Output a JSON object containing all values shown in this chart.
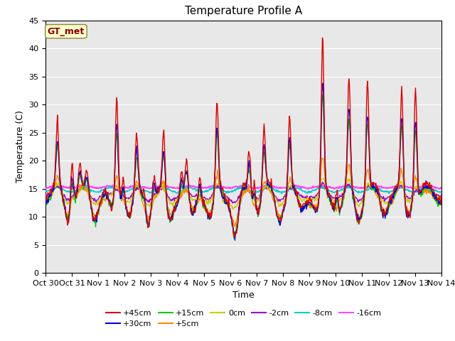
{
  "title": "Temperature Profile A",
  "xlabel": "Time",
  "ylabel": "Temperature (C)",
  "ylim": [
    0,
    45
  ],
  "yticks": [
    0,
    5,
    10,
    15,
    20,
    25,
    30,
    35,
    40,
    45
  ],
  "xtick_labels": [
    "Oct 30",
    "Oct 31",
    "Nov 1",
    "Nov 2",
    "Nov 3",
    "Nov 4",
    "Nov 5",
    "Nov 6",
    "Nov 7",
    "Nov 8",
    "Nov 9",
    "Nov 10",
    "Nov 11",
    "Nov 12",
    "Nov 13",
    "Nov 14"
  ],
  "series_order": [
    "+45cm",
    "+30cm",
    "+15cm",
    "+5cm",
    "0cm",
    "-2cm",
    "-8cm",
    "-16cm"
  ],
  "series": {
    "+45cm": {
      "color": "#dd0000",
      "lw": 1.0,
      "zorder": 10
    },
    "+30cm": {
      "color": "#0000dd",
      "lw": 1.0,
      "zorder": 9
    },
    "+15cm": {
      "color": "#00cc00",
      "lw": 1.0,
      "zorder": 8
    },
    "+5cm": {
      "color": "#ff8800",
      "lw": 1.0,
      "zorder": 7
    },
    "0cm": {
      "color": "#cccc00",
      "lw": 1.0,
      "zorder": 6
    },
    "-2cm": {
      "color": "#9900cc",
      "lw": 1.0,
      "zorder": 5
    },
    "-8cm": {
      "color": "#00cccc",
      "lw": 1.2,
      "zorder": 4
    },
    "-16cm": {
      "color": "#ff44ff",
      "lw": 1.5,
      "zorder": 3
    }
  },
  "legend_row1": [
    "+45cm",
    "+30cm",
    "+15cm",
    "+5cm",
    "0cm",
    "-2cm"
  ],
  "legend_row2": [
    "-8cm",
    "-16cm"
  ],
  "annotation_text": "GT_met",
  "annotation_color": "#8b0000",
  "annotation_bg": "#ffffcc",
  "plot_bg": "#e8e8e8",
  "fig_bg": "#ffffff",
  "grid_color": "#ffffff",
  "title_fontsize": 11,
  "label_fontsize": 9,
  "tick_fontsize": 8,
  "legend_fontsize": 8
}
